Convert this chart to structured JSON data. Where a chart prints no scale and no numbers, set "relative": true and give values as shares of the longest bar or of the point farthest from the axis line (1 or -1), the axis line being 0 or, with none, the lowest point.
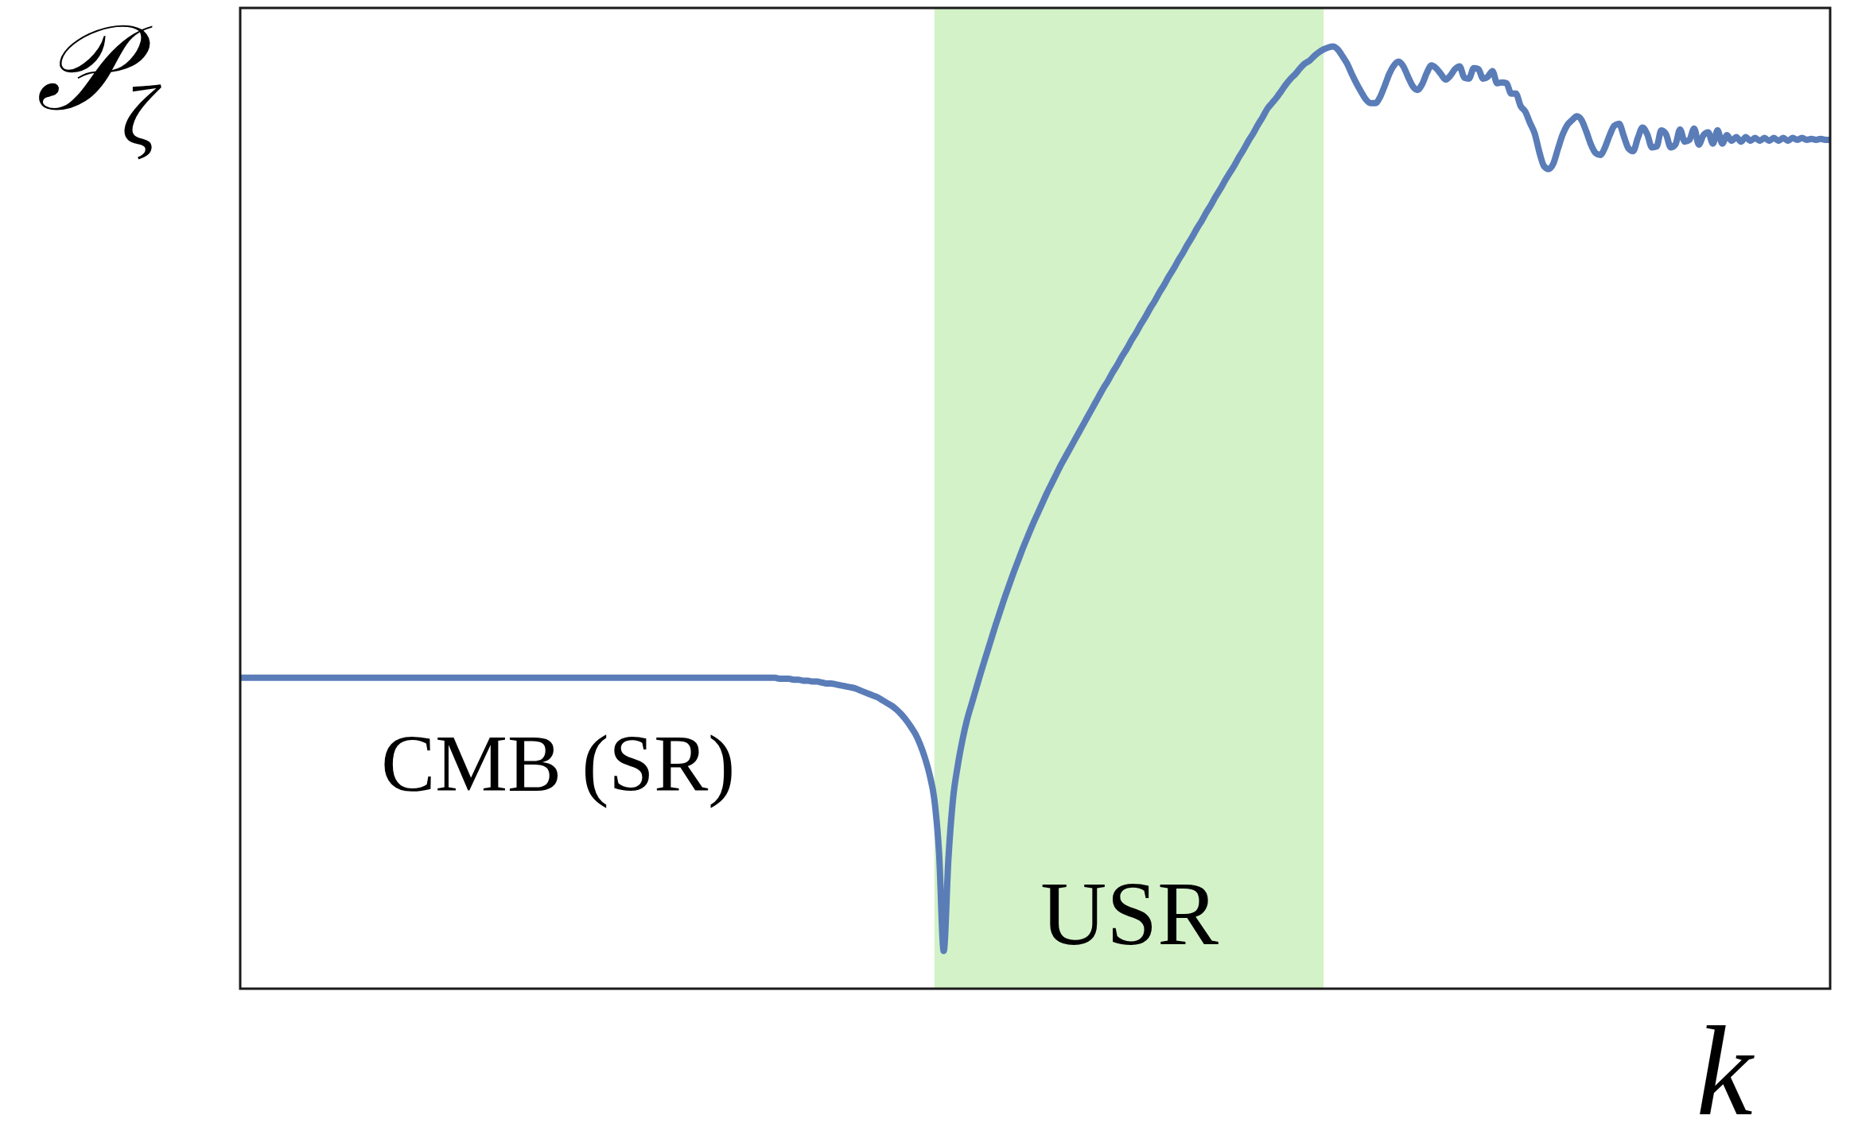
{
  "chart_data": {
    "type": "line",
    "relative": true,
    "xlabel": "k",
    "ylabel": "𝒫$_{ζ}$",
    "annotations": [
      "CMB (SR)",
      "USR"
    ],
    "categories": [
      null,
      null,
      null,
      null,
      null,
      null,
      null,
      null,
      null,
      null,
      null,
      null,
      null,
      null,
      null,
      null,
      null,
      null,
      null,
      null,
      null,
      null,
      null,
      null,
      null,
      null,
      null,
      null,
      null,
      null,
      null,
      null,
      null,
      null,
      null,
      null,
      null,
      null,
      null,
      null,
      null,
      null,
      null,
      null,
      null,
      null,
      null,
      null,
      null,
      null,
      null,
      null,
      null,
      null,
      null,
      null,
      null,
      null,
      null,
      null,
      null,
      null,
      null,
      null,
      null,
      null,
      null,
      null,
      null,
      null,
      null,
      null,
      null,
      null,
      null,
      null,
      null,
      null,
      null,
      null,
      null,
      null,
      null,
      null,
      null,
      null,
      null,
      null,
      null,
      null,
      null,
      null,
      null,
      null,
      null,
      null,
      null,
      null,
      null,
      null,
      null,
      null,
      null,
      null,
      null,
      null,
      null,
      null,
      null,
      null,
      null,
      null,
      null,
      null,
      null,
      null,
      null,
      null,
      null,
      null,
      null,
      null,
      null,
      null,
      null,
      null,
      null,
      null,
      null,
      null,
      null,
      null,
      null,
      null,
      null,
      null,
      null,
      null,
      null,
      null,
      null,
      null,
      null,
      null,
      null,
      null,
      null,
      null,
      null,
      null,
      null,
      null,
      null,
      null,
      null,
      null,
      null,
      null,
      null,
      null,
      null,
      null,
      null,
      null,
      null,
      null,
      null,
      null,
      null,
      null,
      null,
      null,
      null,
      null,
      null,
      null,
      null,
      null,
      null,
      null,
      null,
      null,
      null,
      null,
      null,
      null,
      null,
      null,
      null,
      null,
      null,
      null,
      null,
      null,
      null,
      null,
      null,
      null,
      null,
      null,
      null,
      null,
      null,
      null,
      null,
      null,
      null,
      null,
      null,
      null,
      null,
      null,
      null,
      null,
      null,
      null,
      null,
      null,
      null,
      null,
      null,
      null,
      null,
      null,
      null,
      null,
      null,
      null,
      null,
      null,
      null,
      null,
      null,
      null,
      null,
      null,
      null,
      null,
      null,
      null,
      null,
      null,
      null,
      null,
      null,
      null,
      null,
      null,
      null,
      null,
      null,
      null,
      null,
      null,
      null,
      null,
      null,
      null,
      null,
      null,
      null,
      null,
      null,
      null,
      null,
      null,
      null,
      null,
      null,
      null,
      null,
      null,
      null,
      null,
      null,
      null,
      null,
      null,
      null,
      null,
      null,
      null,
      null,
      null,
      null,
      null,
      null,
      null,
      null,
      null,
      null,
      null,
      null,
      null,
      null,
      null,
      null,
      null,
      null,
      null,
      null,
      null,
      null,
      null,
      null,
      null,
      null,
      null,
      null,
      null,
      null,
      null,
      null,
      null,
      null,
      null,
      null,
      null,
      null,
      null,
      null,
      null,
      null,
      null,
      null,
      null,
      null,
      null,
      null,
      null,
      null,
      null,
      null,
      null,
      null,
      null,
      null,
      null,
      null,
      null
    ],
    "series": [
      {
        "color": "#5a7db8",
        "values": [
          0.33,
          0.33,
          0.33,
          0.33,
          0.33,
          0.33,
          0.33,
          0.33,
          0.33,
          0.33,
          0.33,
          0.33,
          0.33,
          0.33,
          0.33,
          0.33,
          0.33,
          0.33,
          0.33,
          0.33,
          0.33,
          0.33,
          0.33,
          0.33,
          0.33,
          0.33,
          0.33,
          0.33,
          0.33,
          0.33,
          0.33,
          0.33,
          0.33,
          0.33,
          0.33,
          0.33,
          0.33,
          0.33,
          0.33,
          0.33,
          0.33,
          0.33,
          0.33,
          0.33,
          0.33,
          0.33,
          0.33,
          0.33,
          0.33,
          0.33,
          0.33,
          0.33,
          0.33,
          0.33,
          0.33,
          0.33,
          0.33,
          0.33,
          0.33,
          0.33,
          0.33,
          0.33,
          0.33,
          0.33,
          0.33,
          0.33,
          0.33,
          0.33,
          0.33,
          0.33,
          0.33,
          0.33,
          0.33,
          0.33,
          0.33,
          0.33,
          0.33,
          0.33,
          0.33,
          0.33,
          0.33,
          0.33,
          0.33,
          0.33,
          0.33,
          0.33,
          0.33,
          0.33,
          0.33,
          0.33,
          0.33,
          0.33,
          0.33,
          0.33,
          0.33,
          0.33,
          0.33,
          0.33,
          0.33,
          0.33,
          0.33,
          0.33,
          0.33,
          0.33,
          0.33,
          0.33,
          0.33,
          0.33,
          0.33,
          0.33,
          0.33,
          0.33,
          0.33,
          0.33,
          0.33,
          0.329,
          0.329,
          0.329,
          0.328,
          0.328,
          0.327,
          0.327,
          0.326,
          0.326,
          0.325,
          0.324,
          0.324,
          0.323,
          0.322,
          0.321,
          0.32,
          0.319,
          0.317,
          0.315,
          0.313,
          0.311,
          0.309,
          0.306,
          0.303,
          0.3,
          0.296,
          0.291,
          0.285,
          0.278,
          0.27,
          0.259,
          0.245,
          0.227,
          0.201,
          0.145,
          0.04,
          0.138,
          0.202,
          0.237,
          0.264,
          0.286,
          0.303,
          0.32,
          0.337,
          0.353,
          0.369,
          0.385,
          0.4,
          0.415,
          0.429,
          0.443,
          0.456,
          0.469,
          0.481,
          0.493,
          0.504,
          0.515,
          0.526,
          0.536,
          0.546,
          0.556,
          0.565,
          0.574,
          0.583,
          0.592,
          0.601,
          0.61,
          0.619,
          0.628,
          0.637,
          0.645,
          0.654,
          0.662,
          0.671,
          0.679,
          0.688,
          0.696,
          0.705,
          0.713,
          0.722,
          0.73,
          0.739,
          0.747,
          0.756,
          0.764,
          0.773,
          0.781,
          0.79,
          0.798,
          0.807,
          0.815,
          0.824,
          0.832,
          0.841,
          0.849,
          0.858,
          0.866,
          0.874,
          0.883,
          0.891,
          0.9,
          0.908,
          0.917,
          0.925,
          0.934,
          0.94,
          0.946,
          0.953,
          0.96,
          0.966,
          0.971,
          0.977,
          0.982,
          0.985,
          0.99,
          0.994,
          0.997,
          0.999,
          1,
          0.997,
          0.99,
          0.982,
          0.971,
          0.961,
          0.952,
          0.944,
          0.94,
          0.94,
          0.946,
          0.958,
          0.971,
          0.98,
          0.984,
          0.979,
          0.968,
          0.958,
          0.954,
          0.96,
          0.972,
          0.98,
          0.977,
          0.971,
          0.965,
          0.969,
          0.976,
          0.979,
          0.967,
          0.966,
          0.977,
          0.976,
          0.966,
          0.968,
          0.974,
          0.961,
          0.962,
          0.961,
          0.95,
          0.95,
          0.937,
          0.931,
          0.919,
          0.908,
          0.888,
          0.873,
          0.87,
          0.876,
          0.892,
          0.907,
          0.917,
          0.922,
          0.926,
          0.922,
          0.91,
          0.896,
          0.887,
          0.885,
          0.893,
          0.906,
          0.916,
          0.918,
          0.905,
          0.892,
          0.889,
          0.903,
          0.914,
          0.907,
          0.893,
          0.894,
          0.911,
          0.907,
          0.893,
          0.896,
          0.912,
          0.899,
          0.901,
          0.913,
          0.896,
          0.906,
          0.909,
          0.897,
          0.911,
          0.897,
          0.906,
          0.9,
          0.904,
          0.899,
          0.904,
          0.9,
          0.903,
          0.9,
          0.903,
          0.9,
          0.903,
          0.9,
          0.903,
          0.9,
          0.903,
          0.901,
          0.903,
          0.901,
          0.902,
          0.901,
          0.902,
          0.901,
          0.901
        ]
      }
    ]
  }
}
